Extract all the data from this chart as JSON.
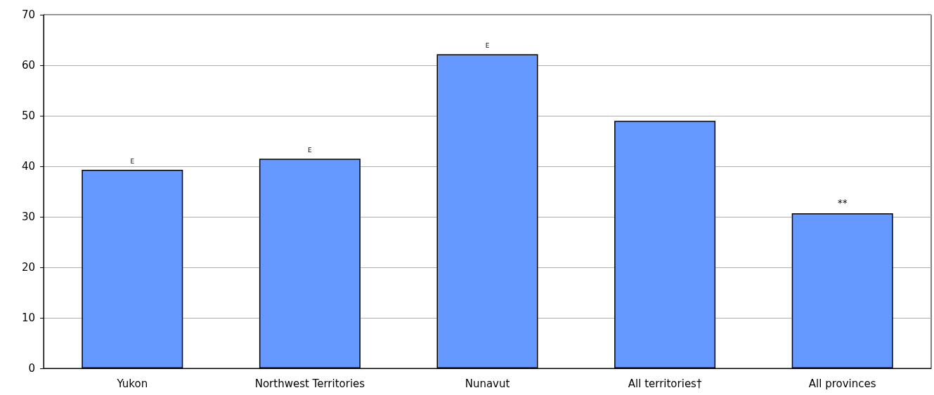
{
  "chart_data": {
    "type": "bar",
    "categories": [
      "Yukon",
      "Northwest Territories",
      "Nunavut",
      "All territories†",
      "All provinces"
    ],
    "values": [
      39.3,
      41.5,
      62.2,
      49.0,
      30.7
    ],
    "value_labels": [
      "E",
      "E",
      "E",
      null,
      "**"
    ],
    "color": "#6699ff",
    "ylim": [
      0,
      70
    ],
    "yticks": [
      0,
      10,
      20,
      30,
      40,
      50,
      60,
      70
    ],
    "grid": "y"
  }
}
